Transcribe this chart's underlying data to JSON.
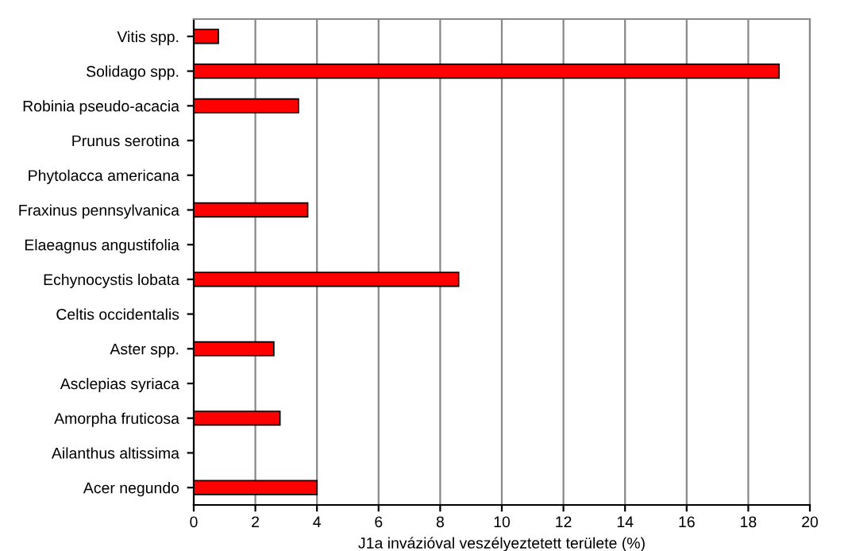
{
  "chart_data": {
    "type": "bar",
    "orientation": "horizontal",
    "xlabel": "J1a invázióval veszélyeztetett területe (%)",
    "categories": [
      "Vitis spp.",
      "Solidago spp.",
      "Robinia pseudo-acacia",
      "Prunus serotina",
      "Phytolacca americana",
      "Fraxinus pennsylvanica",
      "Elaeagnus angustifolia",
      "Echynocystis lobata",
      "Celtis occidentalis",
      "Aster spp.",
      "Asclepias syriaca",
      "Amorpha fruticosa",
      "Ailanthus altissima",
      "Acer negundo"
    ],
    "values": [
      0.8,
      19.0,
      3.4,
      0,
      0,
      3.7,
      0,
      8.6,
      0,
      2.6,
      0,
      2.8,
      0,
      4.0
    ],
    "color": "#ff0000",
    "xlim": [
      0,
      20
    ],
    "xticks": [
      0,
      2,
      4,
      6,
      8,
      10,
      12,
      14,
      16,
      18,
      20
    ],
    "grid": "x"
  }
}
